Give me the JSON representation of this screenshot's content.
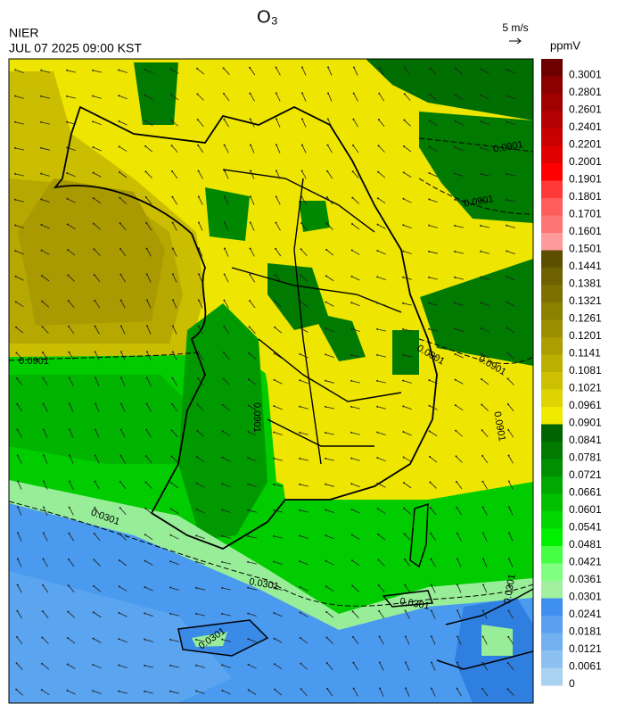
{
  "header": {
    "title": "O₃",
    "agency": "NIER",
    "datetime": "JUL 07 2025 09:00 KST",
    "wind_scale": "5 m/s"
  },
  "colorbar": {
    "unit": "ppmV",
    "levels": [
      0.3001,
      0.2801,
      0.2601,
      0.2401,
      0.2201,
      0.2001,
      0.1901,
      0.1801,
      0.1701,
      0.1601,
      0.1501,
      0.1441,
      0.1381,
      0.1321,
      0.1261,
      0.1201,
      0.1141,
      0.1081,
      0.1021,
      0.0961,
      0.0901,
      0.0841,
      0.0781,
      0.0721,
      0.0661,
      0.0601,
      0.0541,
      0.0481,
      0.0421,
      0.0361,
      0.0301,
      0.0241,
      0.0181,
      0.0121,
      0.0061,
      0
    ],
    "colors": [
      "#6e0000",
      "#8c0000",
      "#a00000",
      "#b40000",
      "#c80000",
      "#e00000",
      "#ff0000",
      "#ff3838",
      "#ff5c5c",
      "#ff7474",
      "#ff9a9a",
      "#5c5000",
      "#6e6200",
      "#7d7000",
      "#8c8000",
      "#9b8f00",
      "#aa9e00",
      "#bbb000",
      "#ccc000",
      "#ddd400",
      "#f0ea00",
      "#006400",
      "#007a00",
      "#008f00",
      "#00a800",
      "#00c000",
      "#00d800",
      "#00f000",
      "#44ff44",
      "#80ff80",
      "#a0f0a0",
      "#3f8ff0",
      "#5a9ff0",
      "#72b0f0",
      "#8cc0f0",
      "#a8d2f0"
    ]
  },
  "contour_labels": [
    "0.0901",
    "0.0901",
    "0.0901",
    "0.0901",
    "0.0901",
    "0.0901",
    "0.0901",
    "0.0301",
    "0.0301",
    "0.0301",
    "0.0301",
    "0.0301"
  ]
}
